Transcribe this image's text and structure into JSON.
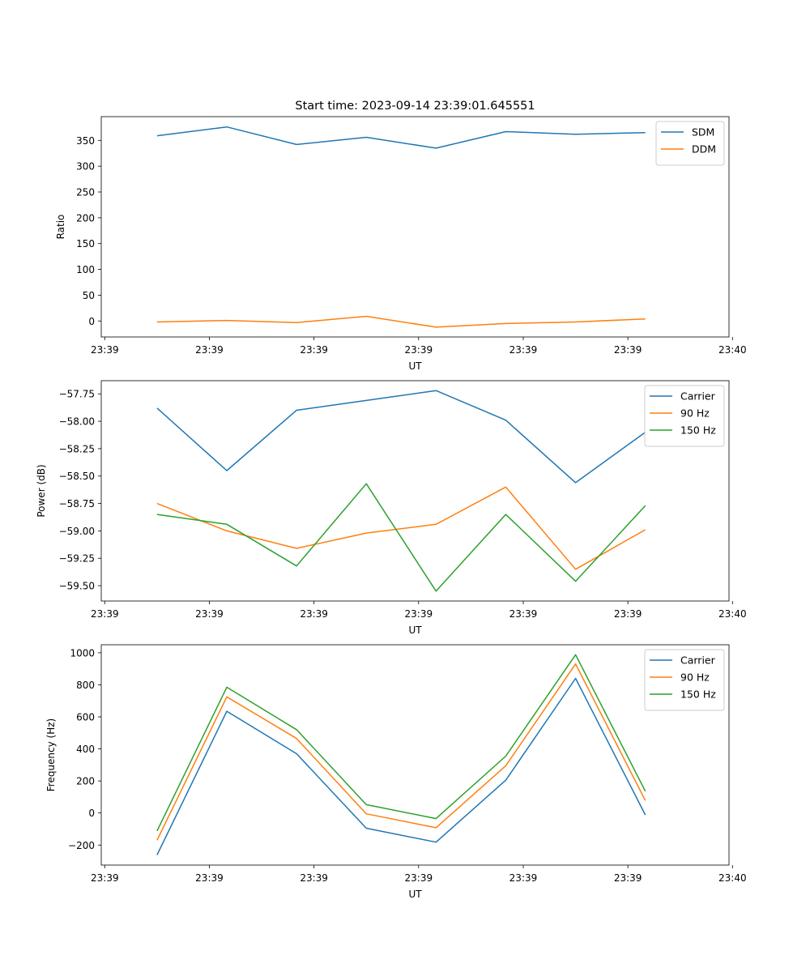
{
  "figure": {
    "title": "Start time: 2023-09-14 23:39:01.645551"
  },
  "chart_data": [
    {
      "type": "line",
      "xlabel": "UT",
      "ylabel": "Ratio",
      "x_tick_labels": [
        "23:39",
        "23:39",
        "23:39",
        "23:39",
        "23:39",
        "23:39",
        "23:40"
      ],
      "x": [
        1,
        2,
        3,
        4,
        5,
        6,
        7,
        8
      ],
      "xlim": [
        0.2,
        9.2
      ],
      "x_ticks": [
        0.25,
        1.75,
        3.25,
        4.75,
        6.25,
        7.75,
        9.25
      ],
      "ylim": [
        -31,
        396
      ],
      "y_ticks": [
        0,
        50,
        100,
        150,
        200,
        250,
        300,
        350
      ],
      "legend": "top-right",
      "grid": false,
      "series": [
        {
          "name": "SDM",
          "color": "#1f77b4",
          "values": [
            359,
            376,
            342,
            356,
            335,
            367,
            362,
            365
          ]
        },
        {
          "name": "DDM",
          "color": "#ff7f0e",
          "values": [
            -2,
            1,
            -3,
            9,
            -12,
            -5,
            -2,
            4
          ]
        }
      ]
    },
    {
      "type": "line",
      "xlabel": "UT",
      "ylabel": "Power (dB)",
      "x_tick_labels": [
        "23:39",
        "23:39",
        "23:39",
        "23:39",
        "23:39",
        "23:39",
        "23:40"
      ],
      "x": [
        1,
        2,
        3,
        4,
        5,
        6,
        7,
        8
      ],
      "xlim": [
        0.2,
        9.2
      ],
      "x_ticks": [
        0.25,
        1.75,
        3.25,
        4.75,
        6.25,
        7.75,
        9.25
      ],
      "ylim": [
        -59.64,
        -57.63
      ],
      "y_ticks": [
        -59.5,
        -59.25,
        -59.0,
        -58.75,
        -58.5,
        -58.25,
        -58.0,
        -57.75
      ],
      "y_tick_labels": [
        "−59.50",
        "−59.25",
        "−59.00",
        "−58.75",
        "−58.50",
        "−58.25",
        "−58.00",
        "−57.75"
      ],
      "legend": "top-right",
      "grid": false,
      "series": [
        {
          "name": "Carrier",
          "color": "#1f77b4",
          "values": [
            -57.88,
            -58.45,
            -57.9,
            -57.81,
            -57.72,
            -57.99,
            -58.56,
            -58.1
          ]
        },
        {
          "name": "90 Hz",
          "color": "#ff7f0e",
          "values": [
            -58.75,
            -59.0,
            -59.16,
            -59.02,
            -58.94,
            -58.6,
            -59.35,
            -58.99
          ]
        },
        {
          "name": "150 Hz",
          "color": "#2ca02c",
          "values": [
            -58.85,
            -58.94,
            -59.32,
            -58.57,
            -59.55,
            -58.85,
            -59.46,
            -58.77
          ]
        }
      ]
    },
    {
      "type": "line",
      "xlabel": "UT",
      "ylabel": "Frequency (Hz)",
      "x_tick_labels": [
        "23:39",
        "23:39",
        "23:39",
        "23:39",
        "23:39",
        "23:39",
        "23:40"
      ],
      "x": [
        1,
        2,
        3,
        4,
        5,
        6,
        7,
        8
      ],
      "xlim": [
        0.2,
        9.2
      ],
      "x_ticks": [
        0.25,
        1.75,
        3.25,
        4.75,
        6.25,
        7.75,
        9.25
      ],
      "ylim": [
        -325,
        1050
      ],
      "y_ticks": [
        -200,
        0,
        200,
        400,
        600,
        800,
        1000
      ],
      "y_tick_labels": [
        "−200",
        "0",
        "200",
        "400",
        "600",
        "800",
        "1000"
      ],
      "legend": "top-right",
      "grid": false,
      "series": [
        {
          "name": "Carrier",
          "color": "#1f77b4",
          "values": [
            -262,
            635,
            370,
            -95,
            -182,
            205,
            840,
            -12
          ]
        },
        {
          "name": "90 Hz",
          "color": "#ff7f0e",
          "values": [
            -170,
            725,
            465,
            -5,
            -92,
            295,
            930,
            78
          ]
        },
        {
          "name": "150 Hz",
          "color": "#2ca02c",
          "values": [
            -112,
            785,
            520,
            52,
            -35,
            355,
            988,
            136
          ]
        }
      ]
    }
  ]
}
